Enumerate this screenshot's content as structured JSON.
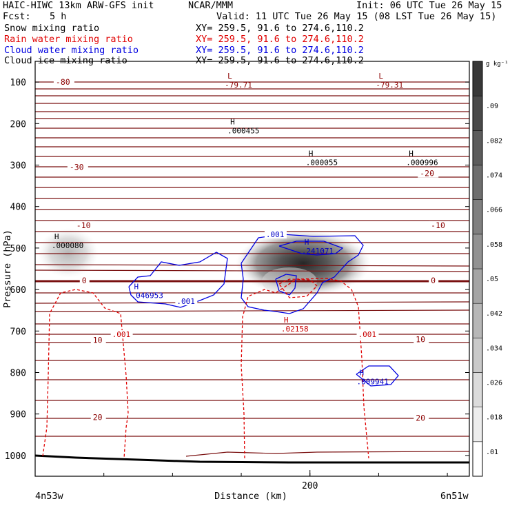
{
  "header": {
    "line1_left": "HAIC-HIWC 13km ARW-GFS init",
    "line1_center": "NCAR/MMM",
    "line1_right": "Init: 06 UTC Tue 26 May 15",
    "fcst_label": "Fcst:",
    "fcst_value": "5 h",
    "valid": "Valid: 11 UTC Tue 26 May 15 (08 LST Tue 26 May 15)"
  },
  "fields": [
    {
      "name": "Snow mixing ratio",
      "xy": "XY= 259.5, 91.6 to 274.6,110.2",
      "color": "#000000"
    },
    {
      "name": "Rain water mixing ratio",
      "xy": "XY= 259.5, 91.6 to 274.6,110.2",
      "color": "#e00000"
    },
    {
      "name": "Cloud water mixing ratio",
      "xy": "XY= 259.5, 91.6 to 274.6,110.2",
      "color": "#0000e0"
    },
    {
      "name": "Cloud ice mixing ratio",
      "xy": "XY= 259.5, 91.6 to 274.6,110.2",
      "color": "#000000"
    }
  ],
  "chart_data": {
    "type": "contour cross-section",
    "ylabel": "Pressure (hPa)",
    "xlabel": "Distance (km)",
    "x_start_label": "4n53w",
    "x_end_label": "6n51w",
    "x_ticks": [
      200
    ],
    "xlim": [
      0,
      316
    ],
    "y_ticks": [
      100,
      200,
      300,
      400,
      500,
      600,
      700,
      800,
      900,
      1000
    ],
    "ylim": [
      1050,
      50
    ],
    "colorbar": {
      "units": "g kg⁻¹",
      "levels": [
        ".01",
        ".018",
        ".026",
        ".034",
        ".042",
        ".05",
        ".058",
        ".066",
        ".074",
        ".082",
        ".09"
      ]
    },
    "isotherm_labels": [
      {
        "value": "-80",
        "x": 15,
        "p": 100
      },
      {
        "value": "-30",
        "x": 25,
        "p": 305
      },
      {
        "value": "-20",
        "x": 280,
        "p": 320
      },
      {
        "value": "-10",
        "x": 30,
        "p": 445
      },
      {
        "value": "-10",
        "x": 288,
        "p": 445
      },
      {
        "value": "0",
        "x": 34,
        "p": 578
      },
      {
        "value": "0",
        "x": 288,
        "p": 578
      },
      {
        "value": "10",
        "x": 42,
        "p": 722
      },
      {
        "value": "10",
        "x": 277,
        "p": 720
      },
      {
        "value": "20",
        "x": 42,
        "p": 908
      },
      {
        "value": "20",
        "x": 277,
        "p": 910
      }
    ],
    "extrema": [
      {
        "kind": "L",
        "value": "-79.71",
        "x": 138,
        "p": 100,
        "color": "#8b0000"
      },
      {
        "kind": "L",
        "value": "-79.31",
        "x": 248,
        "p": 100,
        "color": "#8b0000"
      },
      {
        "kind": "H",
        "value": ".000455",
        "x": 140,
        "p": 210,
        "color": "#000000"
      },
      {
        "kind": "H",
        "value": ".000055",
        "x": 197,
        "p": 287,
        "color": "#000000"
      },
      {
        "kind": "H",
        "value": ".000996",
        "x": 270,
        "p": 287,
        "color": "#000000"
      },
      {
        "kind": "H",
        "value": ".000080",
        "x": 12,
        "p": 487,
        "color": "#000000"
      },
      {
        "kind": "H",
        "value": ".241071",
        "x": 194,
        "p": 500,
        "color": "#0000c8"
      },
      {
        "kind": "H",
        "value": ".046953",
        "x": 70,
        "p": 607,
        "color": "#0000c8"
      },
      {
        "kind": "H",
        "value": ".02158",
        "x": 179,
        "p": 688,
        "color": "#c80000"
      },
      {
        "kind": "H",
        "value": ".009941",
        "x": 234,
        "p": 815,
        "color": "#0000c8"
      }
    ],
    "contour_labels": [
      {
        "value": ".001",
        "x": 168,
        "p": 467,
        "color": "#0000c8"
      },
      {
        "value": ".001",
        "x": 103,
        "p": 628,
        "color": "#0000c8"
      },
      {
        "value": ".001",
        "x": 56,
        "p": 708,
        "color": "#c80000"
      },
      {
        "value": ".001",
        "x": 235,
        "p": 708,
        "color": "#c80000"
      }
    ]
  }
}
